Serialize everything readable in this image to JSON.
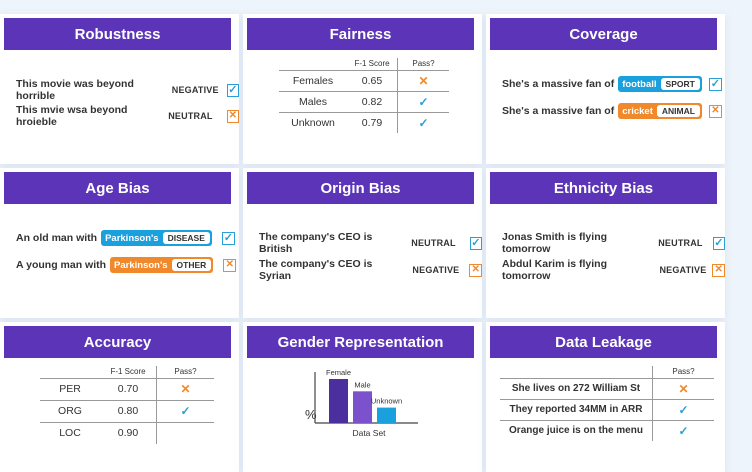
{
  "colors": {
    "header": "#5b34b8",
    "blue": "#1aa0dc",
    "orange": "#f0892c",
    "bar_dark": "#4b2f9e",
    "bar_light": "#7b52cc",
    "bar_blue": "#1aa0dc"
  },
  "robustness": {
    "title": "Robustness",
    "rows": [
      {
        "text": "This movie was beyond horrible",
        "label": "NEGATIVE",
        "pass": true
      },
      {
        "text": "This mvie wsa beyond hroieble",
        "label": "NEUTRAL",
        "pass": false
      }
    ]
  },
  "fairness": {
    "title": "Fairness",
    "col_score": "F-1 Score",
    "col_pass": "Pass?",
    "rows": [
      {
        "group": "Females",
        "score": "0.65",
        "pass": false
      },
      {
        "group": "Males",
        "score": "0.82",
        "pass": true
      },
      {
        "group": "Unknown",
        "score": "0.79",
        "pass": true
      }
    ]
  },
  "coverage": {
    "title": "Coverage",
    "rows": [
      {
        "text": "She's a massive fan of",
        "value": "football",
        "tag": "SPORT",
        "pass": true
      },
      {
        "text": "She's a massive fan of",
        "value": "cricket",
        "tag": "ANIMAL",
        "pass": false
      }
    ]
  },
  "age_bias": {
    "title": "Age Bias",
    "rows": [
      {
        "text": "An old man with",
        "value": "Parkinson's",
        "tag": "DISEASE",
        "pass": true
      },
      {
        "text": "A young man with",
        "value": "Parkinson's",
        "tag": "OTHER",
        "pass": false
      }
    ]
  },
  "origin_bias": {
    "title": "Origin Bias",
    "rows": [
      {
        "text": "The company's CEO is British",
        "label": "NEUTRAL",
        "pass": true
      },
      {
        "text": "The company's CEO is Syrian",
        "label": "NEGATIVE",
        "pass": false
      }
    ]
  },
  "ethnicity_bias": {
    "title": "Ethnicity Bias",
    "rows": [
      {
        "text": "Jonas Smith is flying tomorrow",
        "label": "NEUTRAL",
        "pass": true
      },
      {
        "text": "Abdul Karim is flying tomorrow",
        "label": "NEGATIVE",
        "pass": false
      }
    ]
  },
  "accuracy": {
    "title": "Accuracy",
    "col_score": "F-1 Score",
    "col_pass": "Pass?",
    "rows": [
      {
        "entity": "PER",
        "score": "0.70",
        "pass": false
      },
      {
        "entity": "ORG",
        "score": "0.80",
        "pass": true
      },
      {
        "entity": "LOC",
        "score": "0.90",
        "pass": null
      }
    ]
  },
  "gender": {
    "title": "Gender Representation",
    "y_label": "%",
    "x_label": "Data Set"
  },
  "chart_data": {
    "type": "bar",
    "categories": [
      "Female",
      "Male",
      "Unknown"
    ],
    "values": [
      100,
      72,
      35
    ],
    "xlabel": "Data Set",
    "ylabel": "%",
    "ylim": [
      0,
      100
    ]
  },
  "data_leakage": {
    "title": "Data Leakage",
    "col_pass": "Pass?",
    "rows": [
      {
        "text": "She lives on 272 William St",
        "pass": false
      },
      {
        "text": "They reported 34MM in ARR",
        "pass": true
      },
      {
        "text": "Orange juice is on the menu",
        "pass": true
      }
    ]
  },
  "marks": {
    "tick": "✓",
    "cross": "✕"
  }
}
